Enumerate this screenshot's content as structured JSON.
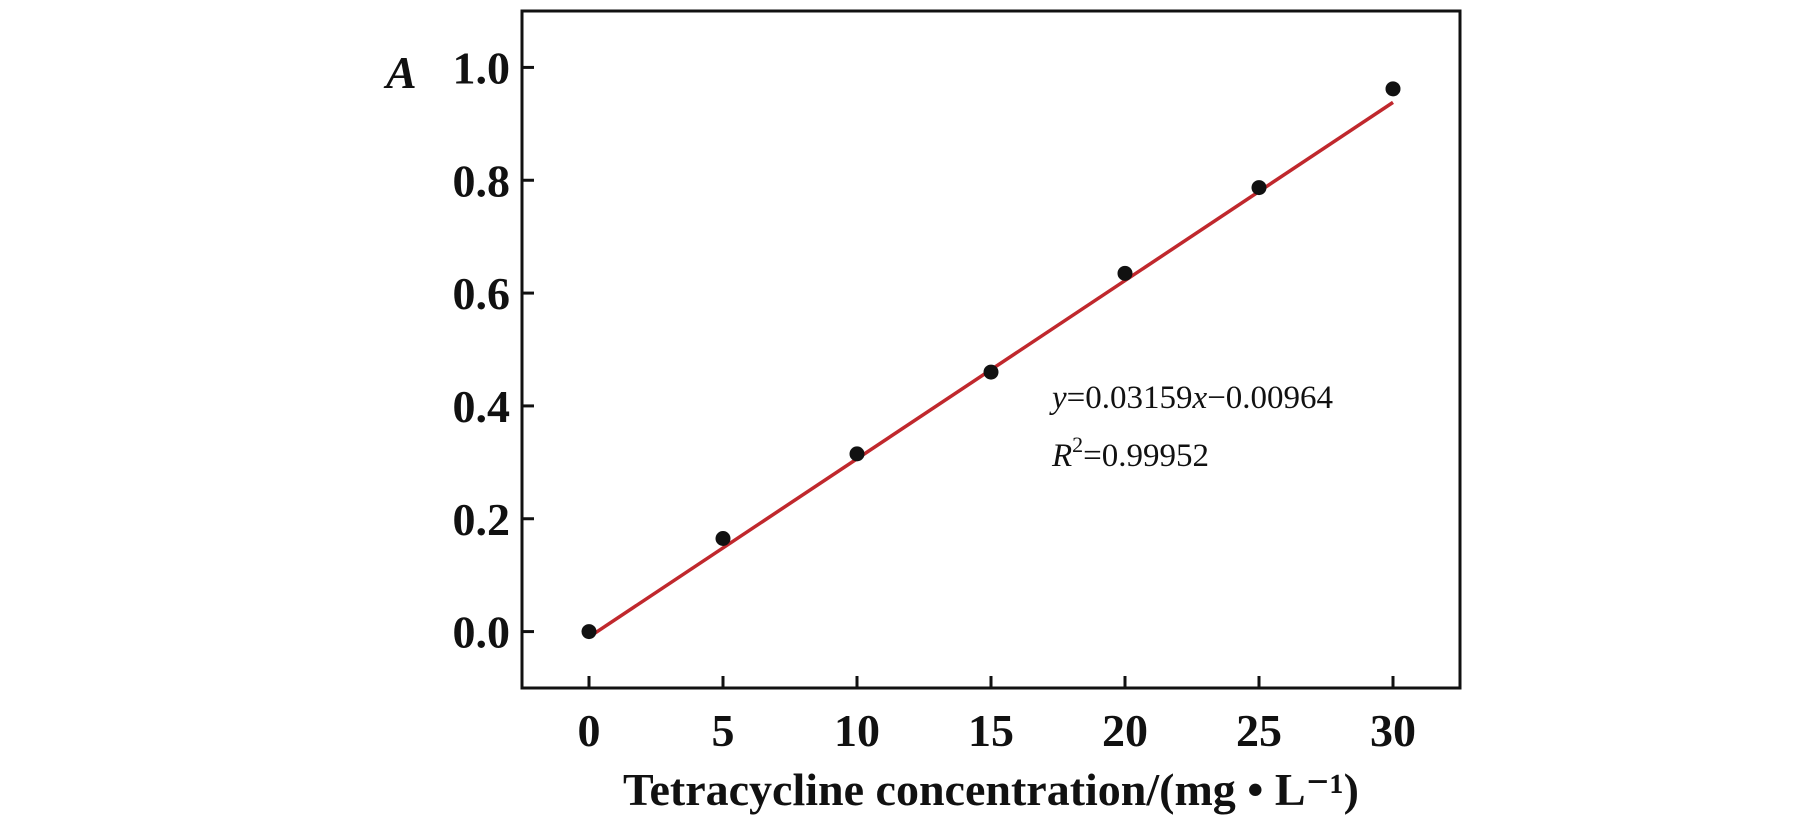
{
  "chart_data": {
    "type": "scatter",
    "title": "",
    "xlabel": "Tetracycline concentration/(mg • L⁻¹)",
    "ylabel": "A",
    "xlim": [
      -2.5,
      32.5
    ],
    "ylim": [
      -0.1,
      1.1
    ],
    "x_ticks": [
      0,
      5,
      10,
      15,
      20,
      25,
      30
    ],
    "x_tick_labels": [
      "0",
      "5",
      "10",
      "15",
      "20",
      "25",
      "30"
    ],
    "y_ticks": [
      0.0,
      0.2,
      0.4,
      0.6,
      0.8,
      1.0
    ],
    "y_tick_labels": [
      "0.0",
      "0.2",
      "0.4",
      "0.6",
      "0.8",
      "1.0"
    ],
    "grid": false,
    "series": [
      {
        "points": [
          {
            "x": 0,
            "y": 0.0
          },
          {
            "x": 5,
            "y": 0.165
          },
          {
            "x": 10,
            "y": 0.315
          },
          {
            "x": 15,
            "y": 0.46
          },
          {
            "x": 20,
            "y": 0.635
          },
          {
            "x": 25,
            "y": 0.787
          },
          {
            "x": 30,
            "y": 0.962
          }
        ],
        "color": "#111111"
      }
    ],
    "fit_line": {
      "slope": 0.03159,
      "intercept": -0.00964,
      "x_range": [
        0,
        30
      ],
      "color": "#c0282d"
    },
    "annotation": {
      "equation_y": "y",
      "equation_eq": "=0.03159",
      "equation_x": "x",
      "equation_rest": "−0.00964",
      "r2_letter": "R",
      "r2_sup": "2",
      "r2_value": "=0.99952"
    }
  }
}
